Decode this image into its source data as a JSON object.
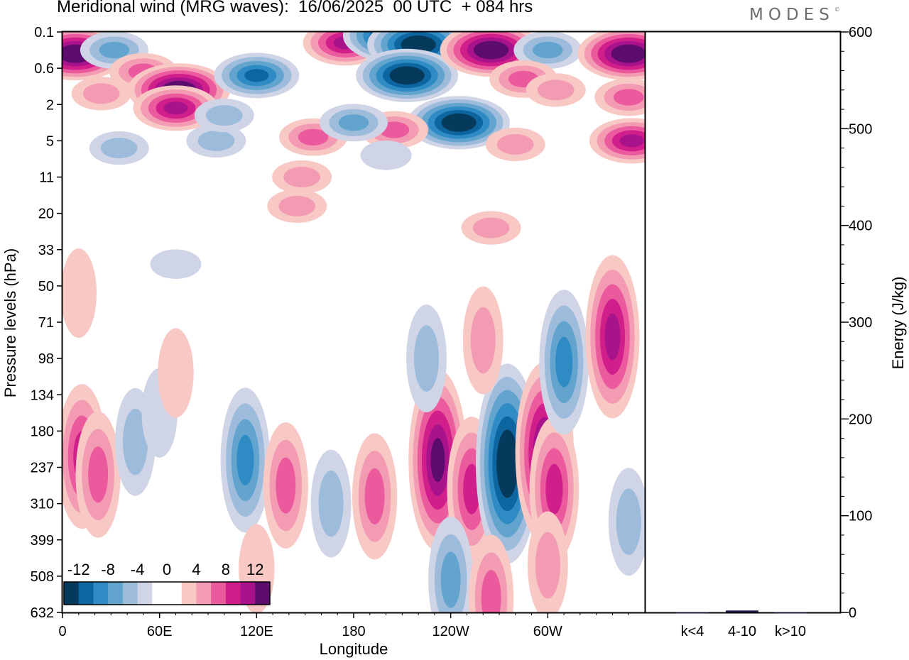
{
  "title": "Meridional wind (MRG waves):  16/06/2025  00 UTC  + 084 hrs",
  "logo": "MODES",
  "colors": {
    "negative": [
      "#053a5c",
      "#0d66a0",
      "#2f8bc4",
      "#63a4cf",
      "#9dbcdc",
      "#cfd4e6"
    ],
    "positive": [
      "#f8c8c4",
      "#f49bb4",
      "#ec5a9e",
      "#d01e8a",
      "#a8138b",
      "#5b0c6d"
    ],
    "zero": "#ffffff",
    "frame": "#000000"
  },
  "chart_data": [
    {
      "type": "heatmap",
      "title": "Meridional wind (MRG waves):  16/06/2025  00 UTC  + 084 hrs",
      "xlabel": "Longitude",
      "ylabel": "Pressure levels (hPa)",
      "x_ticks": [
        "0",
        "60E",
        "120E",
        "180",
        "120W",
        "60W"
      ],
      "y_ticks": [
        "0.1",
        "0.6",
        "2",
        "5",
        "11",
        "20",
        "33",
        "50",
        "71",
        "98",
        "134",
        "180",
        "237",
        "310",
        "399",
        "508",
        "632"
      ],
      "colorbar": {
        "labels": [
          "-12",
          "-8",
          "-4",
          "0",
          "4",
          "8",
          "12"
        ],
        "levels": [
          -14,
          -12,
          -10,
          -8,
          -6,
          -4,
          -2,
          2,
          4,
          6,
          8,
          10,
          12,
          14
        ]
      },
      "features": [
        {
          "lon": 8,
          "p_index": 0.6,
          "value": 14
        },
        {
          "lon": 32,
          "p_index": 0.5,
          "value": -6
        },
        {
          "lon": 50,
          "p_index": 1.1,
          "value": 6
        },
        {
          "lon": 72,
          "p_index": 1.6,
          "value": 14
        },
        {
          "lon": 70,
          "p_index": 2.1,
          "value": 10
        },
        {
          "lon": 24,
          "p_index": 1.7,
          "value": 4
        },
        {
          "lon": 35,
          "p_index": 3.2,
          "value": -4
        },
        {
          "lon": 95,
          "p_index": 3.0,
          "value": -4
        },
        {
          "lon": 120,
          "p_index": 1.2,
          "value": -10
        },
        {
          "lon": 100,
          "p_index": 2.3,
          "value": -4
        },
        {
          "lon": 175,
          "p_index": 0.3,
          "value": 10
        },
        {
          "lon": 205,
          "p_index": 0.1,
          "value": -14
        },
        {
          "lon": 220,
          "p_index": 0.35,
          "value": -14
        },
        {
          "lon": 213,
          "p_index": 1.2,
          "value": -14
        },
        {
          "lon": 245,
          "p_index": 2.5,
          "value": -14
        },
        {
          "lon": 205,
          "p_index": 2.7,
          "value": 6
        },
        {
          "lon": 155,
          "p_index": 2.9,
          "value": 6
        },
        {
          "lon": 180,
          "p_index": 2.5,
          "value": -6
        },
        {
          "lon": 265,
          "p_index": 0.5,
          "value": 14
        },
        {
          "lon": 300,
          "p_index": 0.5,
          "value": -6
        },
        {
          "lon": 285,
          "p_index": 1.3,
          "value": 6
        },
        {
          "lon": 305,
          "p_index": 1.6,
          "value": 4
        },
        {
          "lon": 350,
          "p_index": 0.6,
          "value": 14
        },
        {
          "lon": 352,
          "p_index": 3.0,
          "value": 10
        },
        {
          "lon": 350,
          "p_index": 1.8,
          "value": 6
        },
        {
          "lon": 280,
          "p_index": 3.1,
          "value": 4
        },
        {
          "lon": 148,
          "p_index": 4.0,
          "value": 4
        },
        {
          "lon": 12,
          "p_index": 11.7,
          "value": 8
        },
        {
          "lon": 22,
          "p_index": 12.2,
          "value": 6
        },
        {
          "lon": 45,
          "p_index": 11.3,
          "value": -4
        },
        {
          "lon": 60,
          "p_index": 10.5,
          "value": -2
        },
        {
          "lon": 70,
          "p_index": 9.4,
          "value": 2
        },
        {
          "lon": 113,
          "p_index": 11.8,
          "value": -8
        },
        {
          "lon": 138,
          "p_index": 12.5,
          "value": 6
        },
        {
          "lon": 166,
          "p_index": 13.0,
          "value": -4
        },
        {
          "lon": 193,
          "p_index": 12.8,
          "value": 6
        },
        {
          "lon": 232,
          "p_index": 11.8,
          "value": 12
        },
        {
          "lon": 253,
          "p_index": 12.6,
          "value": 8
        },
        {
          "lon": 275,
          "p_index": 11.9,
          "value": -14
        },
        {
          "lon": 298,
          "p_index": 11.6,
          "value": 12
        },
        {
          "lon": 304,
          "p_index": 12.6,
          "value": 8
        },
        {
          "lon": 310,
          "p_index": 9.1,
          "value": -8
        },
        {
          "lon": 340,
          "p_index": 8.4,
          "value": 10
        },
        {
          "lon": 350,
          "p_index": 13.5,
          "value": -4
        },
        {
          "lon": 300,
          "p_index": 14.7,
          "value": 4
        },
        {
          "lon": 240,
          "p_index": 15.1,
          "value": -6
        },
        {
          "lon": 265,
          "p_index": 15.6,
          "value": 6
        },
        {
          "lon": 120,
          "p_index": 14.8,
          "value": 2
        },
        {
          "lon": 145,
          "p_index": 4.8,
          "value": 4
        },
        {
          "lon": 265,
          "p_index": 5.4,
          "value": 4
        },
        {
          "lon": 200,
          "p_index": 3.4,
          "value": -2
        },
        {
          "lon": 70,
          "p_index": 6.4,
          "value": -2
        },
        {
          "lon": 10,
          "p_index": 7.2,
          "value": 2
        },
        {
          "lon": 225,
          "p_index": 9.0,
          "value": -4
        },
        {
          "lon": 260,
          "p_index": 8.5,
          "value": 4
        }
      ]
    },
    {
      "type": "bar",
      "categories": [
        "k<4",
        "4-10",
        "k>10"
      ],
      "values": [
        0,
        2,
        0
      ],
      "ylabel": "Energy (J/kg)",
      "ylim": [
        0,
        600
      ],
      "y_ticks": [
        0,
        100,
        200,
        300,
        400,
        500,
        600
      ]
    }
  ]
}
